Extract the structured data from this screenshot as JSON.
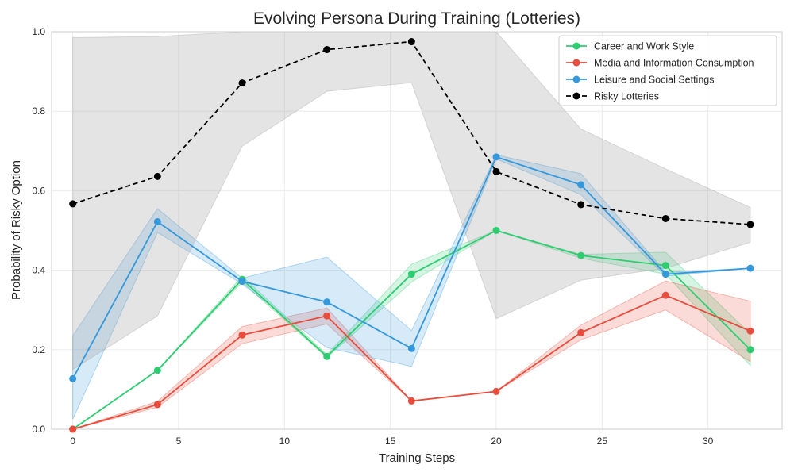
{
  "chart_data": {
    "type": "line",
    "title": "Evolving Persona During Training (Lotteries)",
    "xlabel": "Training Steps",
    "ylabel": "Probability of Risky Option",
    "xlim": [
      -1,
      33.5
    ],
    "ylim": [
      0,
      1
    ],
    "xticks": [
      0,
      5,
      10,
      15,
      20,
      25,
      30
    ],
    "yticks": [
      0.0,
      0.2,
      0.4,
      0.6,
      0.8,
      1.0
    ],
    "grid": true,
    "legend_position": "top-right",
    "x": [
      0,
      4,
      8,
      12,
      16,
      20,
      24,
      28,
      32
    ],
    "series": [
      {
        "name": "Career and Work Style",
        "color": "#2ecc71",
        "style": "solid",
        "values": [
          0.0,
          0.148,
          0.377,
          0.183,
          0.39,
          0.5,
          0.437,
          0.412,
          0.2
        ],
        "lower": [
          0.0,
          0.148,
          0.37,
          0.18,
          0.37,
          0.5,
          0.43,
          0.39,
          0.16
        ],
        "upper": [
          0.0,
          0.148,
          0.385,
          0.188,
          0.415,
          0.5,
          0.44,
          0.445,
          0.24
        ]
      },
      {
        "name": "Media and Information Consumption",
        "color": "#e74c3c",
        "style": "solid",
        "values": [
          0.0,
          0.062,
          0.237,
          0.285,
          0.071,
          0.095,
          0.243,
          0.337,
          0.247
        ],
        "lower": [
          0.0,
          0.055,
          0.215,
          0.265,
          0.071,
          0.095,
          0.225,
          0.3,
          0.17
        ],
        "upper": [
          0.0,
          0.07,
          0.258,
          0.305,
          0.071,
          0.095,
          0.262,
          0.373,
          0.322
        ]
      },
      {
        "name": "Leisure and Social Settings",
        "color": "#3498db",
        "style": "solid",
        "values": [
          0.127,
          0.522,
          0.372,
          0.32,
          0.203,
          0.685,
          0.615,
          0.39,
          0.405
        ],
        "lower": [
          0.025,
          0.495,
          0.365,
          0.205,
          0.158,
          0.68,
          0.59,
          0.385,
          0.405
        ],
        "upper": [
          0.235,
          0.555,
          0.38,
          0.433,
          0.248,
          0.69,
          0.643,
          0.395,
          0.405
        ]
      },
      {
        "name": "Risky Lotteries",
        "color": "#000000",
        "style": "dashed",
        "values": [
          0.567,
          0.636,
          0.871,
          0.955,
          0.975,
          0.648,
          0.565,
          0.53,
          0.515
        ],
        "lower": [
          0.15,
          0.285,
          0.712,
          0.85,
          0.872,
          0.278,
          0.375,
          0.405,
          0.47
        ],
        "upper": [
          0.985,
          0.988,
          1.03,
          1.06,
          1.08,
          1.02,
          0.755,
          0.655,
          0.558
        ]
      }
    ]
  }
}
